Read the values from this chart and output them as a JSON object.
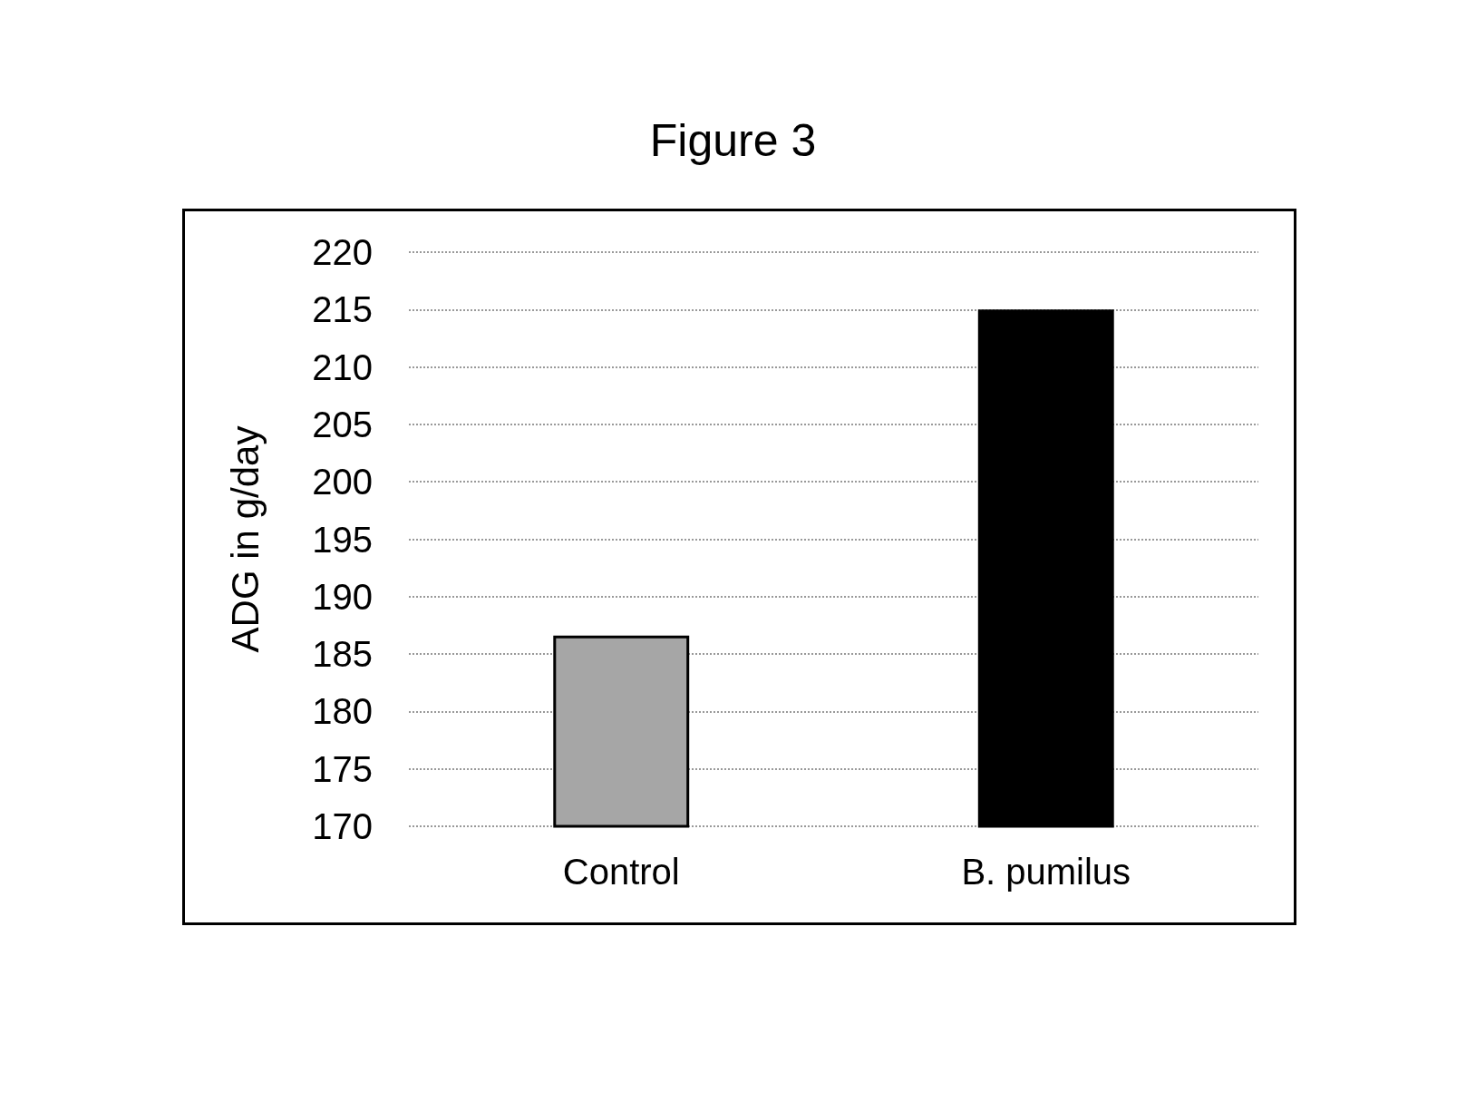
{
  "chart_data": {
    "type": "bar",
    "title": "Figure 3",
    "ylabel": "ADG in g/day",
    "categories": [
      "Control",
      "B. pumilus"
    ],
    "values": [
      186.6,
      215
    ],
    "colors": [
      "#a6a6a6",
      "#000000"
    ],
    "ylim": [
      170,
      220
    ],
    "yticks": [
      170,
      175,
      180,
      185,
      190,
      195,
      200,
      205,
      210,
      215,
      220
    ],
    "grid": "y"
  }
}
